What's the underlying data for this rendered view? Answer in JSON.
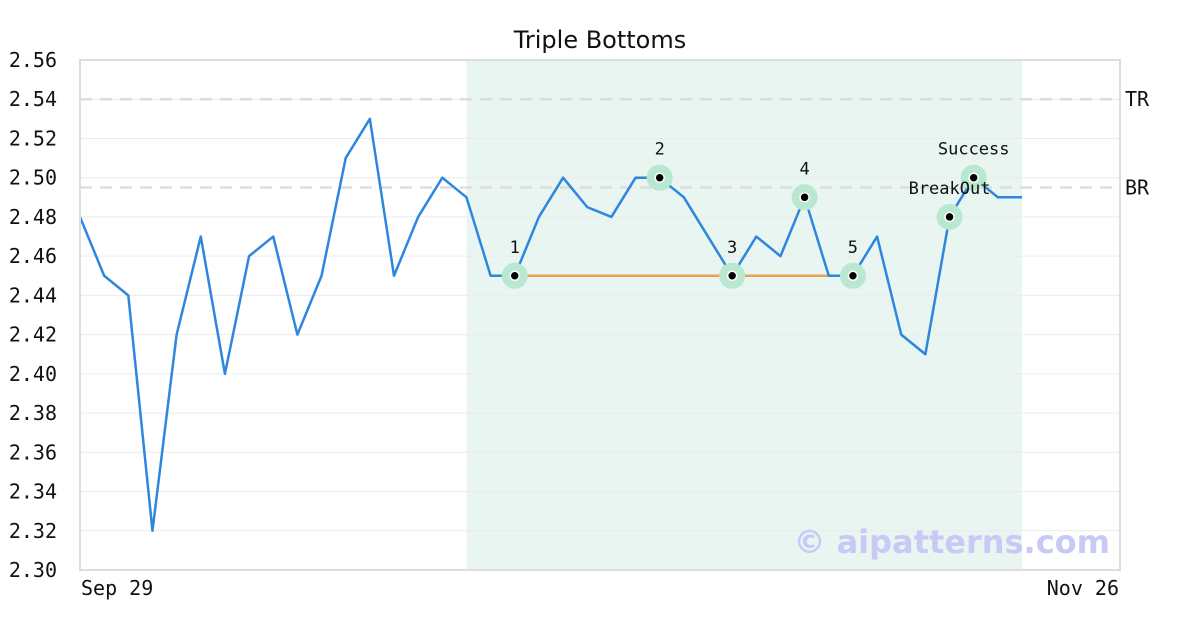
{
  "chart_data": {
    "type": "line",
    "title": "Triple Bottoms",
    "xlabel": "",
    "ylabel": "",
    "ylim": [
      2.3,
      2.56
    ],
    "y_ticks": [
      "2.30",
      "2.32",
      "2.34",
      "2.36",
      "2.38",
      "2.40",
      "2.42",
      "2.44",
      "2.46",
      "2.48",
      "2.50",
      "2.52",
      "2.54",
      "2.56"
    ],
    "x_tick_labels": {
      "start": "Sep 29",
      "end": "Nov 26"
    },
    "grid": true,
    "series": [
      {
        "color": "#2e86de",
        "values": [
          2.48,
          2.45,
          2.44,
          2.32,
          2.42,
          2.47,
          2.4,
          2.46,
          2.47,
          2.42,
          2.45,
          2.51,
          2.53,
          2.45,
          2.48,
          2.5,
          2.49,
          2.45,
          2.45,
          2.48,
          2.5,
          2.485,
          2.48,
          2.5,
          2.5,
          2.49,
          2.47,
          2.45,
          2.47,
          2.46,
          2.49,
          2.45,
          2.45,
          2.47,
          2.42,
          2.41,
          2.48,
          2.5,
          2.49,
          2.49
        ]
      }
    ],
    "pattern_region": {
      "start_index": 16,
      "end_index": 39,
      "color": "#e8f5f0"
    },
    "levels": [
      {
        "label": "TR",
        "value": 2.54,
        "color": "#dddddd"
      },
      {
        "label": "BR",
        "value": 2.495,
        "color": "#dddddd"
      }
    ],
    "support_line": {
      "start_index": 18,
      "end_index": 32,
      "value": 2.45,
      "color": "#f0a050"
    },
    "annotations": [
      {
        "label": "1",
        "index": 18,
        "value": 2.45,
        "position": "above"
      },
      {
        "label": "2",
        "index": 24,
        "value": 2.5,
        "position": "above"
      },
      {
        "label": "3",
        "index": 27,
        "value": 2.45,
        "position": "above"
      },
      {
        "label": "4",
        "index": 30,
        "value": 2.49,
        "position": "above"
      },
      {
        "label": "5",
        "index": 32,
        "value": 2.45,
        "position": "above"
      },
      {
        "label": "BreakOut",
        "index": 36,
        "value": 2.48,
        "position": "above"
      },
      {
        "label": "Success",
        "index": 37,
        "value": 2.5,
        "position": "above"
      }
    ],
    "marker_halo_color": "#b8e8d0",
    "watermark": "© aipatterns.com"
  }
}
